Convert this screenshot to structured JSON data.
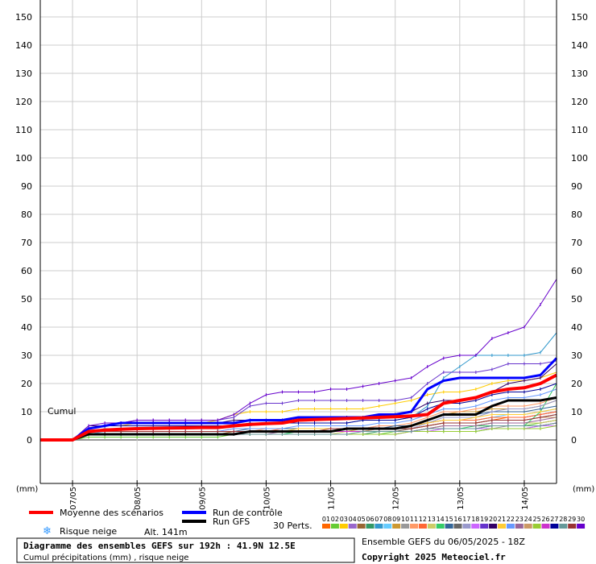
{
  "chart_data": {
    "type": "line",
    "ylim": [
      0,
      155
    ],
    "y_ticks": [
      0,
      10,
      20,
      30,
      40,
      50,
      60,
      70,
      80,
      90,
      100,
      110,
      120,
      130,
      140,
      150
    ],
    "x_range": [
      0,
      192
    ],
    "x_tick_hours": [
      12,
      36,
      60,
      84,
      108,
      132,
      156,
      180
    ],
    "x_tick_labels": [
      "07/05",
      "08/05",
      "09/05",
      "10/05",
      "11/05",
      "12/05",
      "13/05",
      "14/05"
    ],
    "unit_left": "(mm)",
    "unit_right": "(mm)",
    "cumul_label": "Cumul",
    "x_hours": [
      0,
      6,
      12,
      18,
      24,
      30,
      36,
      42,
      48,
      54,
      60,
      66,
      72,
      78,
      84,
      90,
      96,
      102,
      108,
      114,
      120,
      126,
      132,
      138,
      144,
      150,
      156,
      162,
      168,
      174,
      180,
      186,
      192
    ],
    "series": [
      {
        "name": "Moyenne des scénarios",
        "color": "#ff0000",
        "width": 4,
        "values": [
          0,
          0,
          0,
          3,
          3.5,
          3.8,
          4,
          4.1,
          4.2,
          4.3,
          4.4,
          4.4,
          5,
          5.5,
          5.8,
          6,
          7,
          7.2,
          7.4,
          7.6,
          7.8,
          8,
          8.2,
          8.5,
          9,
          13,
          14,
          15,
          17,
          18,
          18.5,
          20,
          23
        ]
      },
      {
        "name": "Run de contrôle",
        "color": "#0000ff",
        "width": 3,
        "values": [
          0,
          0,
          0,
          4,
          5,
          6,
          6,
          6,
          6,
          6,
          6,
          6,
          6,
          7,
          7,
          7,
          8,
          8,
          8,
          8,
          8,
          9,
          9,
          10,
          18,
          21,
          22,
          22,
          22,
          22,
          22,
          23,
          29
        ]
      },
      {
        "name": "Run GFS",
        "color": "#000000",
        "width": 3,
        "values": [
          0,
          0,
          0,
          2,
          2,
          2,
          2,
          2,
          2,
          2,
          2,
          2,
          2,
          3,
          3,
          3,
          3,
          3,
          3,
          4,
          4,
          4,
          4,
          5,
          7,
          9,
          9,
          9,
          12,
          14,
          14,
          14,
          15
        ]
      }
    ],
    "perturbations": [
      {
        "name": "01",
        "color": "#ff6600",
        "values": [
          0,
          0,
          0,
          2,
          2,
          2,
          2,
          2,
          2,
          2,
          2,
          2,
          2,
          3,
          3,
          3,
          3,
          3,
          3,
          3,
          3,
          3,
          3,
          4,
          5,
          6,
          6,
          6,
          7,
          8,
          8,
          9,
          10
        ]
      },
      {
        "name": "02",
        "color": "#66cc33",
        "values": [
          0,
          0,
          0,
          1,
          1,
          1,
          1,
          1,
          1,
          1,
          1,
          1,
          2,
          2,
          2,
          2,
          2,
          2,
          2,
          2,
          2,
          2,
          3,
          3,
          4,
          4,
          4,
          4,
          5,
          5,
          5,
          6,
          7
        ]
      },
      {
        "name": "03",
        "color": "#ffcc00",
        "values": [
          0,
          0,
          0,
          4,
          5,
          5,
          6,
          6,
          6,
          6,
          6,
          7,
          9,
          10,
          10,
          10,
          11,
          11,
          11,
          11,
          11,
          12,
          13,
          14,
          16,
          17,
          17,
          18,
          20,
          21,
          21,
          22,
          24
        ]
      },
      {
        "name": "04",
        "color": "#9966cc",
        "values": [
          0,
          0,
          0,
          3,
          3,
          3,
          3,
          3,
          3,
          3,
          3,
          3,
          4,
          4,
          4,
          4,
          4,
          4,
          4,
          4,
          4,
          5,
          5,
          5,
          6,
          7,
          7,
          7,
          8,
          8,
          8,
          9,
          10
        ]
      },
      {
        "name": "05",
        "color": "#996633",
        "values": [
          0,
          0,
          0,
          2,
          2,
          2,
          2,
          2,
          2,
          2,
          2,
          2,
          3,
          3,
          3,
          3,
          3,
          3,
          3,
          3,
          3,
          3,
          3,
          3,
          4,
          5,
          5,
          5,
          6,
          6,
          6,
          6,
          7
        ]
      },
      {
        "name": "06",
        "color": "#339966",
        "values": [
          0,
          0,
          0,
          2,
          2,
          2,
          2,
          2,
          2,
          2,
          2,
          2,
          2,
          2,
          2,
          2,
          2,
          2,
          2,
          2,
          2,
          3,
          3,
          3,
          3,
          3,
          3,
          3,
          4,
          4,
          4,
          5,
          6
        ]
      },
      {
        "name": "07",
        "color": "#3399cc",
        "values": [
          0,
          0,
          0,
          3,
          4,
          4,
          4,
          4,
          4,
          4,
          4,
          4,
          5,
          5,
          6,
          6,
          6,
          6,
          6,
          6,
          7,
          7,
          7,
          8,
          12,
          22,
          26,
          30,
          30,
          30,
          30,
          31,
          38
        ]
      },
      {
        "name": "08",
        "color": "#66ccff",
        "values": [
          0,
          0,
          0,
          2,
          3,
          3,
          3,
          3,
          3,
          3,
          3,
          3,
          3,
          3,
          3,
          3,
          3,
          3,
          3,
          3,
          3,
          4,
          4,
          5,
          6,
          7,
          7,
          7,
          8,
          9,
          9,
          10,
          11
        ]
      },
      {
        "name": "09",
        "color": "#cc9933",
        "values": [
          0,
          0,
          0,
          3,
          3,
          3,
          3,
          3,
          3,
          3,
          3,
          3,
          3,
          3,
          3,
          3,
          3,
          3,
          3,
          3,
          4,
          4,
          4,
          5,
          7,
          9,
          10,
          10,
          11,
          11,
          11,
          12,
          14
        ]
      },
      {
        "name": "10",
        "color": "#999999",
        "values": [
          0,
          0,
          0,
          2,
          2,
          2,
          2,
          2,
          2,
          2,
          2,
          2,
          2,
          2,
          2,
          2,
          2,
          2,
          2,
          2,
          2,
          2,
          2,
          3,
          3,
          4,
          4,
          4,
          4,
          5,
          5,
          5,
          6
        ]
      },
      {
        "name": "11",
        "color": "#ff9966",
        "values": [
          0,
          0,
          0,
          3,
          3,
          3,
          3,
          3,
          3,
          3,
          3,
          3,
          3,
          3,
          4,
          4,
          4,
          4,
          4,
          4,
          4,
          5,
          5,
          6,
          8,
          10,
          10,
          11,
          12,
          12,
          12,
          13,
          15
        ]
      },
      {
        "name": "12",
        "color": "#ff6633",
        "values": [
          0,
          0,
          0,
          3,
          3,
          3,
          3,
          3,
          3,
          3,
          3,
          3,
          3,
          3,
          3,
          4,
          4,
          4,
          4,
          4,
          4,
          4,
          4,
          5,
          6,
          7,
          7,
          7,
          8,
          8,
          8,
          9,
          10
        ]
      },
      {
        "name": "13",
        "color": "#cccc66",
        "values": [
          0,
          0,
          0,
          2,
          2,
          2,
          2,
          2,
          2,
          2,
          2,
          2,
          2,
          2,
          2,
          2,
          2,
          2,
          2,
          3,
          3,
          3,
          3,
          3,
          4,
          5,
          5,
          5,
          6,
          6,
          6,
          6,
          7
        ]
      },
      {
        "name": "14",
        "color": "#33cc66",
        "values": [
          0,
          0,
          0,
          2,
          2,
          2,
          2,
          2,
          2,
          2,
          2,
          2,
          2,
          2,
          2,
          2,
          3,
          3,
          3,
          3,
          3,
          3,
          3,
          3,
          4,
          4,
          4,
          5,
          5,
          5,
          5,
          10,
          20
        ]
      },
      {
        "name": "15",
        "color": "#336699",
        "values": [
          0,
          0,
          0,
          3,
          3,
          3,
          3,
          3,
          3,
          3,
          3,
          3,
          3,
          4,
          4,
          4,
          4,
          4,
          4,
          4,
          4,
          4,
          5,
          5,
          7,
          9,
          9,
          9,
          10,
          10,
          10,
          11,
          12
        ]
      },
      {
        "name": "16",
        "color": "#666666",
        "values": [
          0,
          0,
          0,
          3,
          3,
          3,
          3,
          3,
          3,
          3,
          3,
          3,
          3,
          3,
          3,
          3,
          3,
          3,
          3,
          3,
          3,
          3,
          3,
          4,
          5,
          6,
          6,
          6,
          7,
          7,
          7,
          8,
          9
        ]
      },
      {
        "name": "17",
        "color": "#9999cc",
        "values": [
          0,
          0,
          0,
          3,
          3,
          3,
          3,
          3,
          3,
          3,
          3,
          3,
          3,
          3,
          3,
          3,
          3,
          3,
          3,
          3,
          3,
          4,
          4,
          4,
          6,
          8,
          8,
          8,
          10,
          11,
          11,
          12,
          14
        ]
      },
      {
        "name": "18",
        "color": "#cc66ff",
        "values": [
          0,
          0,
          0,
          2,
          2,
          2,
          2,
          2,
          2,
          2,
          2,
          2,
          2,
          2,
          2,
          2,
          2,
          2,
          2,
          2,
          2,
          2,
          2,
          3,
          3,
          4,
          4,
          4,
          4,
          4,
          4,
          5,
          5
        ]
      },
      {
        "name": "19",
        "color": "#6633cc",
        "values": [
          0,
          0,
          0,
          4,
          5,
          6,
          7,
          7,
          7,
          7,
          7,
          7,
          8,
          12,
          13,
          13,
          14,
          14,
          14,
          14,
          14,
          14,
          14,
          15,
          20,
          24,
          24,
          24,
          25,
          27,
          27,
          27,
          28
        ]
      },
      {
        "name": "20",
        "color": "#330066",
        "values": [
          0,
          0,
          0,
          5,
          5,
          6,
          6,
          6,
          6,
          6,
          6,
          6,
          7,
          7,
          7,
          7,
          7,
          7,
          7,
          8,
          8,
          8,
          9,
          10,
          13,
          14,
          14,
          15,
          17,
          20,
          21,
          22,
          27
        ]
      },
      {
        "name": "21",
        "color": "#ffcc33",
        "values": [
          0,
          0,
          0,
          3,
          3,
          3,
          3,
          3,
          3,
          3,
          3,
          3,
          3,
          3,
          3,
          3,
          4,
          4,
          4,
          4,
          4,
          4,
          4,
          5,
          6,
          7,
          7,
          8,
          9,
          9,
          9,
          10,
          11
        ]
      },
      {
        "name": "22",
        "color": "#6699ff",
        "values": [
          0,
          0,
          0,
          3,
          3,
          3,
          3,
          3,
          3,
          3,
          3,
          3,
          4,
          4,
          4,
          4,
          5,
          5,
          5,
          5,
          5,
          6,
          6,
          7,
          9,
          11,
          11,
          12,
          14,
          15,
          15,
          16,
          18
        ]
      },
      {
        "name": "23",
        "color": "#996699",
        "values": [
          0,
          0,
          0,
          2,
          2,
          2,
          2,
          2,
          2,
          2,
          2,
          2,
          2,
          2,
          2,
          3,
          3,
          3,
          3,
          3,
          3,
          3,
          3,
          3,
          4,
          5,
          5,
          5,
          6,
          6,
          6,
          7,
          8
        ]
      },
      {
        "name": "24",
        "color": "#cc9966",
        "values": [
          0,
          0,
          0,
          3,
          3,
          3,
          3,
          3,
          3,
          3,
          3,
          3,
          3,
          3,
          3,
          3,
          3,
          3,
          3,
          3,
          3,
          4,
          4,
          4,
          5,
          6,
          6,
          6,
          7,
          7,
          7,
          8,
          8
        ]
      },
      {
        "name": "25",
        "color": "#99cc33",
        "values": [
          0,
          0,
          0,
          2,
          2,
          2,
          2,
          2,
          2,
          2,
          2,
          2,
          2,
          2,
          2,
          2,
          2,
          2,
          2,
          2,
          2,
          2,
          2,
          3,
          3,
          3,
          3,
          3,
          4,
          4,
          4,
          4,
          5
        ]
      },
      {
        "name": "26",
        "color": "#cc33cc",
        "values": [
          0,
          0,
          0,
          3,
          3,
          3,
          3,
          3,
          3,
          3,
          3,
          3,
          3,
          3,
          3,
          3,
          3,
          3,
          3,
          3,
          3,
          3,
          3,
          3,
          4,
          4,
          4,
          4,
          5,
          5,
          5,
          5,
          6
        ]
      },
      {
        "name": "27",
        "color": "#000099",
        "values": [
          0,
          0,
          0,
          4,
          5,
          5,
          5,
          5,
          5,
          5,
          5,
          5,
          5,
          6,
          6,
          6,
          6,
          6,
          6,
          6,
          7,
          7,
          7,
          8,
          11,
          13,
          13,
          14,
          16,
          17,
          17,
          18,
          20
        ]
      },
      {
        "name": "28",
        "color": "#669999",
        "values": [
          0,
          0,
          0,
          2,
          2,
          2,
          2,
          2,
          2,
          2,
          2,
          2,
          2,
          2,
          2,
          2,
          2,
          2,
          2,
          2,
          3,
          3,
          3,
          3,
          4,
          4,
          4,
          4,
          5,
          5,
          5,
          5,
          6
        ]
      },
      {
        "name": "29",
        "color": "#993333",
        "values": [
          0,
          0,
          0,
          3,
          3,
          3,
          3,
          3,
          3,
          3,
          3,
          3,
          3,
          3,
          3,
          3,
          3,
          3,
          4,
          4,
          4,
          4,
          4,
          4,
          5,
          6,
          6,
          6,
          7,
          7,
          7,
          8,
          9
        ]
      },
      {
        "name": "30",
        "color": "#6600cc",
        "values": [
          0,
          0,
          0,
          5,
          6,
          6,
          7,
          7,
          7,
          7,
          7,
          7,
          9,
          13,
          16,
          17,
          17,
          17,
          18,
          18,
          19,
          20,
          21,
          22,
          26,
          29,
          30,
          30,
          36,
          38,
          40,
          48,
          57
        ]
      }
    ]
  },
  "legend": {
    "mean_label": "Moyenne des scénarios",
    "control_label": "Run de contrôle",
    "gfs_label": "Run GFS",
    "perts_label": "30 Perts.",
    "snow_label": "Risque neige",
    "alt_label": "Alt. 141m",
    "snow_icon": "snowflake-icon"
  },
  "footer": {
    "title": "Diagramme des ensembles GEFS sur 192h : 41.9N 12.5E",
    "subtitle": "Cumul précipitations (mm) , risque neige",
    "ensemble_info": "Ensemble GEFS du 06/05/2025 - 18Z",
    "copyright": "Copyright 2025 Meteociel.fr"
  }
}
